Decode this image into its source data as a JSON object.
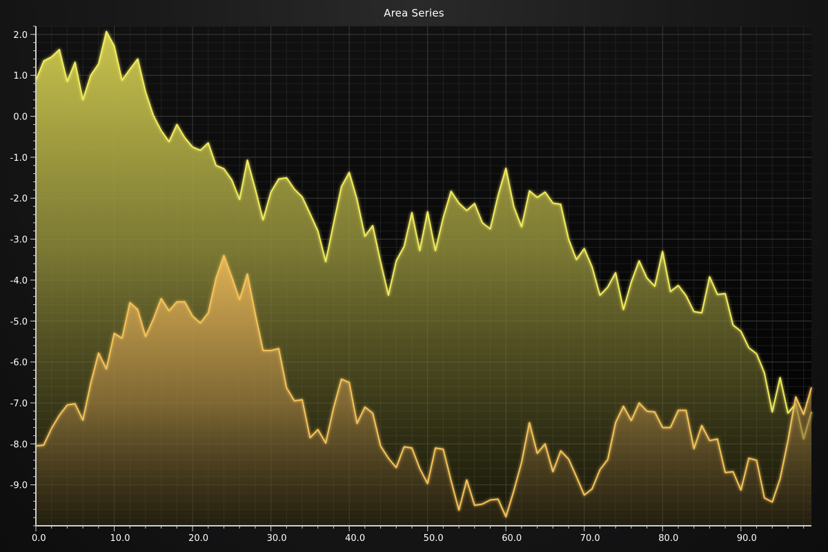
{
  "chart_data": {
    "type": "area",
    "title": "Area Series",
    "xlabel": "",
    "ylabel": "",
    "xlim": [
      0,
      99
    ],
    "ylim": [
      -10,
      2.2
    ],
    "xticks": [
      0,
      10,
      20,
      30,
      40,
      50,
      60,
      70,
      80,
      90
    ],
    "xtick_labels": [
      "0.0",
      "10.0",
      "20.0",
      "30.0",
      "40.0",
      "50.0",
      "60.0",
      "70.0",
      "80.0",
      "90.0"
    ],
    "yticks": [
      2,
      1,
      0,
      -1,
      -2,
      -3,
      -4,
      -5,
      -6,
      -7,
      -8,
      -9
    ],
    "ytick_labels": [
      "2.0",
      "1.0",
      "0.0",
      "-1.0",
      "-2.0",
      "-3.0",
      "-4.0",
      "-5.0",
      "-6.0",
      "-7.0",
      "-8.0",
      "-9.0"
    ],
    "grid": true,
    "legend": "none",
    "colors": {
      "series1_line": "#f2ec5e",
      "series1_fill": "#c8c24a",
      "series2_line": "#f5c35a",
      "series2_fill": "#e6b458",
      "grid": "#3a3a3a",
      "axis": "#cfcfcf",
      "text": "#ffffff"
    },
    "series": [
      {
        "x": [
          0,
          1,
          2,
          3,
          4,
          5,
          6,
          7,
          8,
          9,
          10,
          11,
          12,
          13,
          14,
          15,
          16,
          17,
          18,
          19,
          20,
          21,
          22,
          23,
          24,
          25,
          26,
          27,
          28,
          29,
          30,
          31,
          32,
          33,
          34,
          35,
          36,
          37,
          38,
          39,
          40,
          41,
          42,
          43,
          44,
          45,
          46,
          47,
          48,
          49,
          50,
          51,
          52,
          53,
          54,
          55,
          56,
          57,
          58,
          59,
          60,
          61,
          62,
          63,
          64,
          65,
          66,
          67,
          68,
          69,
          70,
          71,
          72,
          73,
          74,
          75,
          76,
          77,
          78,
          79,
          80,
          81,
          82,
          83,
          84,
          85,
          86,
          87,
          88,
          89,
          90,
          91,
          92,
          93,
          94,
          95,
          96,
          97,
          98,
          99
        ],
        "values": [
          0.88,
          1.35,
          1.45,
          1.63,
          0.85,
          1.32,
          0.4,
          1.0,
          1.28,
          2.07,
          1.72,
          0.88,
          1.15,
          1.4,
          0.6,
          0.02,
          -0.35,
          -0.62,
          -0.2,
          -0.52,
          -0.75,
          -0.83,
          -0.65,
          -1.2,
          -1.28,
          -1.55,
          -2.03,
          -1.07,
          -1.77,
          -2.53,
          -1.85,
          -1.53,
          -1.5,
          -1.78,
          -1.97,
          -2.38,
          -2.8,
          -3.55,
          -2.62,
          -1.72,
          -1.37,
          -2.03,
          -2.93,
          -2.67,
          -3.55,
          -4.37,
          -3.53,
          -3.18,
          -2.35,
          -3.28,
          -2.33,
          -3.28,
          -2.47,
          -1.83,
          -2.12,
          -2.3,
          -2.13,
          -2.6,
          -2.75,
          -1.93,
          -1.27,
          -2.2,
          -2.7,
          -1.82,
          -1.98,
          -1.85,
          -2.12,
          -2.15,
          -3.0,
          -3.5,
          -3.23,
          -3.68,
          -4.37,
          -4.17,
          -3.82,
          -4.72,
          -4.05,
          -3.53,
          -3.95,
          -4.15,
          -3.3,
          -4.28,
          -4.13,
          -4.38,
          -4.77,
          -4.8,
          -3.92,
          -4.35,
          -4.33,
          -5.1,
          -5.25,
          -5.65,
          -5.8,
          -6.27,
          -7.22,
          -6.38,
          -7.25,
          -7.02,
          -7.88,
          -7.22
        ]
      },
      {
        "x": [
          0,
          1,
          2,
          3,
          4,
          5,
          6,
          7,
          8,
          9,
          10,
          11,
          12,
          13,
          14,
          15,
          16,
          17,
          18,
          19,
          20,
          21,
          22,
          23,
          24,
          25,
          26,
          27,
          28,
          29,
          30,
          31,
          32,
          33,
          34,
          35,
          36,
          37,
          38,
          39,
          40,
          41,
          42,
          43,
          44,
          45,
          46,
          47,
          48,
          49,
          50,
          51,
          52,
          53,
          54,
          55,
          56,
          57,
          58,
          59,
          60,
          61,
          62,
          63,
          64,
          65,
          66,
          67,
          68,
          69,
          70,
          71,
          72,
          73,
          74,
          75,
          76,
          77,
          78,
          79,
          80,
          81,
          82,
          83,
          84,
          85,
          86,
          87,
          88,
          89,
          90,
          91,
          92,
          93,
          94,
          95,
          96,
          97,
          98,
          99
        ],
        "values": [
          -8.05,
          -8.03,
          -7.62,
          -7.3,
          -7.05,
          -7.02,
          -7.42,
          -6.52,
          -5.78,
          -6.17,
          -5.3,
          -5.42,
          -4.55,
          -4.72,
          -5.38,
          -4.95,
          -4.45,
          -4.75,
          -4.53,
          -4.53,
          -4.88,
          -5.05,
          -4.8,
          -3.95,
          -3.4,
          -3.92,
          -4.48,
          -3.85,
          -4.82,
          -5.72,
          -5.72,
          -5.67,
          -6.63,
          -6.95,
          -6.92,
          -7.85,
          -7.65,
          -7.98,
          -7.12,
          -6.42,
          -6.5,
          -7.5,
          -7.1,
          -7.25,
          -8.05,
          -8.35,
          -8.58,
          -8.07,
          -8.1,
          -8.6,
          -8.97,
          -8.1,
          -8.13,
          -8.9,
          -9.62,
          -8.88,
          -9.5,
          -9.47,
          -9.37,
          -9.35,
          -9.78,
          -9.15,
          -8.45,
          -7.48,
          -8.23,
          -8.0,
          -8.68,
          -8.17,
          -8.37,
          -8.8,
          -9.25,
          -9.1,
          -8.63,
          -8.38,
          -7.48,
          -7.08,
          -7.43,
          -7.0,
          -7.2,
          -7.22,
          -7.6,
          -7.6,
          -7.18,
          -7.18,
          -8.12,
          -7.55,
          -7.92,
          -7.88,
          -8.7,
          -8.68,
          -9.13,
          -8.35,
          -8.4,
          -9.32,
          -9.42,
          -8.85,
          -7.92,
          -6.85,
          -7.28,
          -6.62
        ]
      }
    ]
  }
}
